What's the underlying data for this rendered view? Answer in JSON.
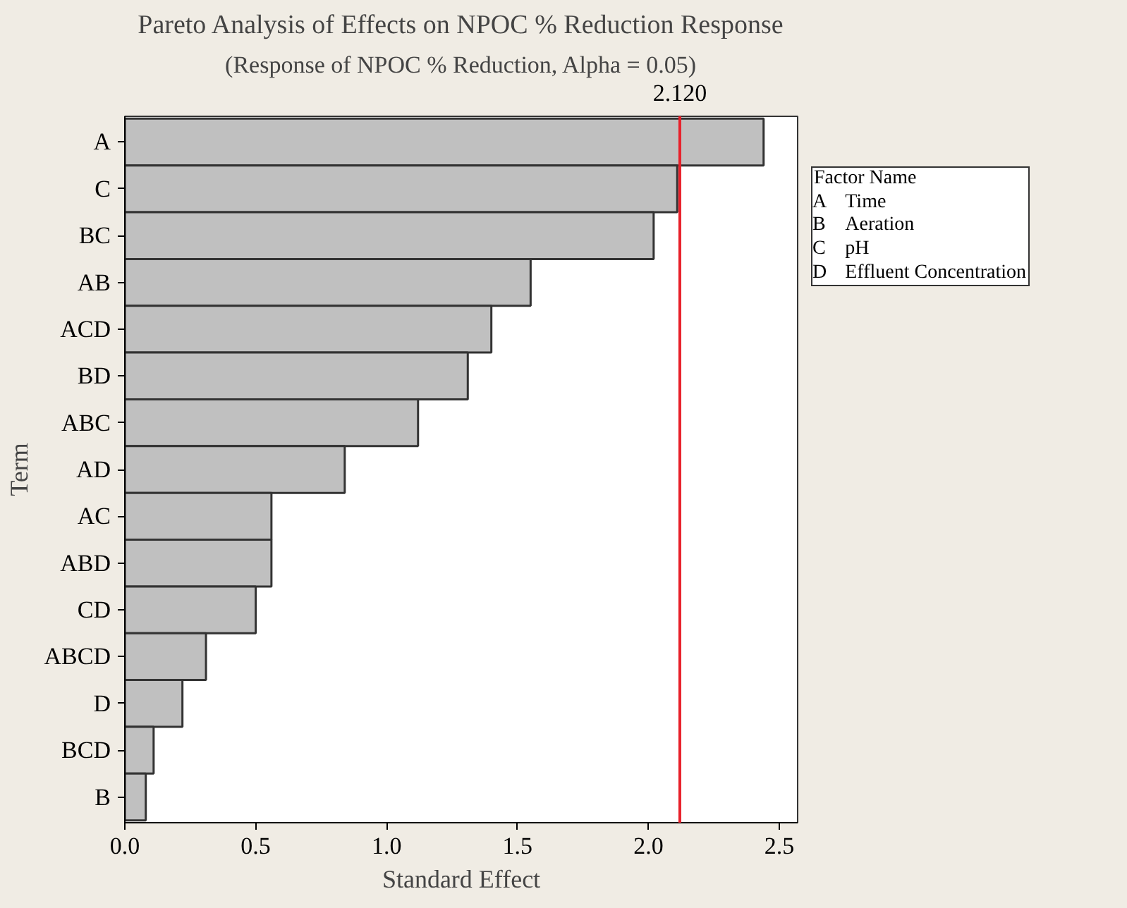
{
  "chart_data": {
    "type": "bar",
    "orientation": "horizontal",
    "title": "Pareto Analysis of Effects on NPOC % Reduction Response",
    "subtitle": "(Response of NPOC % Reduction, Alpha = 0.05)",
    "xlabel": "Standard Effect",
    "ylabel": "Term",
    "categories": [
      "A",
      "C",
      "BC",
      "AB",
      "ACD",
      "BD",
      "ABC",
      "AD",
      "AC",
      "ABD",
      "CD",
      "ABCD",
      "D",
      "BCD",
      "B"
    ],
    "values": [
      2.44,
      2.11,
      2.02,
      1.55,
      1.4,
      1.31,
      1.12,
      0.84,
      0.56,
      0.56,
      0.5,
      0.31,
      0.22,
      0.11,
      0.08
    ],
    "color": "#c0c0c0",
    "xlim": [
      0,
      2.57
    ],
    "xticks": [
      {
        "value": 0,
        "label": "0.0"
      },
      {
        "value": 0.5,
        "label": "0.5"
      },
      {
        "value": 1,
        "label": "1.0"
      },
      {
        "value": 1.5,
        "label": "1.5"
      },
      {
        "value": 2,
        "label": "2.0"
      },
      {
        "value": 2.5,
        "label": "2.5"
      }
    ],
    "ref_lines": [
      {
        "axis": "x",
        "value": 2.12,
        "label": "2.120",
        "color": "#e8202a"
      }
    ],
    "annotations": [
      "Factor Name",
      "A\tTime",
      "B\tAeration",
      "C\tpH",
      "D\tEffluent Concentration"
    ],
    "grid": false
  }
}
